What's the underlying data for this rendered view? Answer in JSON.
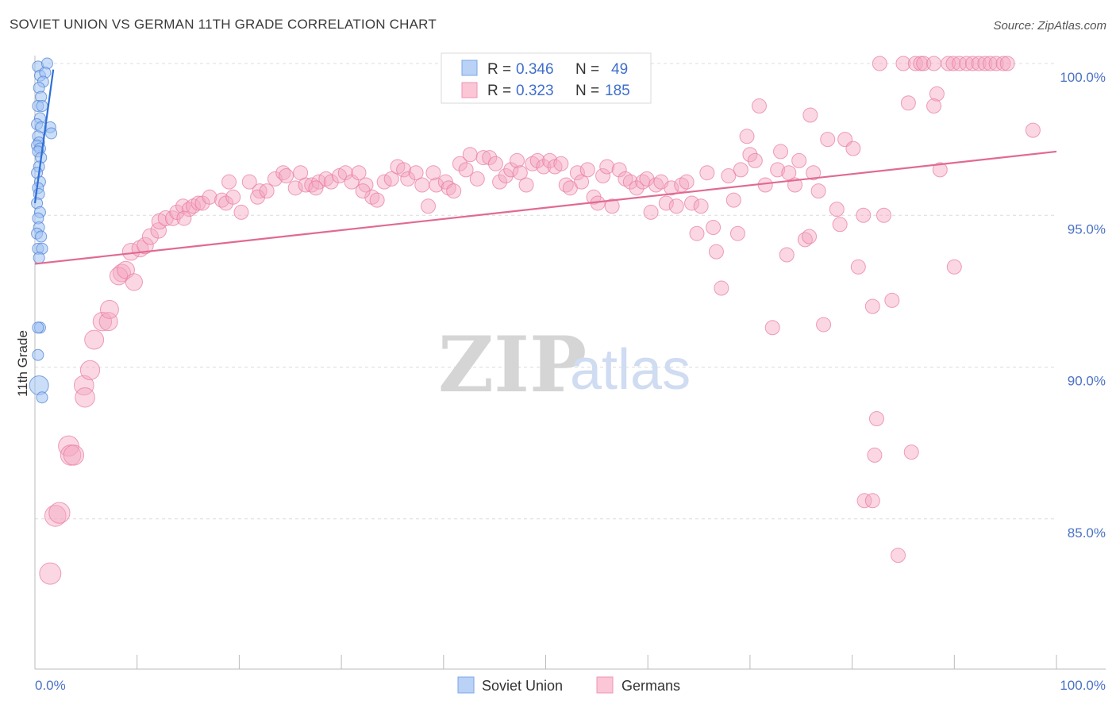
{
  "title": "SOVIET UNION VS GERMAN 11TH GRADE CORRELATION CHART",
  "source": "Source: ZipAtlas.com",
  "watermark": {
    "zip": "ZIP",
    "atlas": "atlas"
  },
  "legend": {
    "rows": [
      {
        "r_label": "R =",
        "r_value": "0.346",
        "n_label": "N =",
        "n_value": "49"
      },
      {
        "r_label": "R =",
        "r_value": "0.323",
        "n_label": "N =",
        "n_value": "185"
      }
    ]
  },
  "chart_data": {
    "type": "scatter",
    "title": "SOVIET UNION VS GERMAN 11TH GRADE CORRELATION CHART",
    "xlabel": "",
    "ylabel": "11th Grade",
    "xlim": [
      0,
      100
    ],
    "ylim": [
      80,
      100.5
    ],
    "x_tick_labels": [
      "0.0%",
      "100.0%"
    ],
    "y_ticks": [
      {
        "value": 100,
        "label": "100.0%"
      },
      {
        "value": 95,
        "label": "95.0%"
      },
      {
        "value": 90,
        "label": "90.0%"
      },
      {
        "value": 85,
        "label": "85.0%"
      }
    ],
    "series": [
      {
        "name": "Soviet Union",
        "color": "#6fa0e8",
        "line_color": "#2f6fd6",
        "r": 0.346,
        "n": 49,
        "trend": {
          "x": [
            0,
            1.8
          ],
          "y": [
            95.4,
            99.8
          ]
        },
        "points": [
          [
            0.3,
            99.9
          ],
          [
            1.2,
            100.0
          ],
          [
            0.5,
            99.6
          ],
          [
            1.0,
            99.7
          ],
          [
            0.8,
            99.4
          ],
          [
            0.4,
            99.2
          ],
          [
            0.6,
            98.9
          ],
          [
            0.3,
            98.6
          ],
          [
            0.7,
            98.6
          ],
          [
            0.5,
            98.2
          ],
          [
            0.2,
            98.0
          ],
          [
            0.6,
            97.9
          ],
          [
            1.5,
            97.9
          ],
          [
            1.6,
            97.7
          ],
          [
            0.3,
            97.6
          ],
          [
            0.4,
            97.4
          ],
          [
            0.2,
            97.3
          ],
          [
            0.5,
            97.2
          ],
          [
            0.3,
            97.1
          ],
          [
            0.6,
            96.9
          ],
          [
            0.4,
            96.6
          ],
          [
            0.2,
            96.4
          ],
          [
            0.5,
            96.1
          ],
          [
            0.3,
            95.9
          ],
          [
            0.4,
            95.7
          ],
          [
            0.2,
            95.4
          ],
          [
            0.5,
            95.1
          ],
          [
            0.3,
            94.9
          ],
          [
            0.4,
            94.6
          ],
          [
            0.2,
            94.4
          ],
          [
            0.6,
            94.3
          ],
          [
            0.3,
            93.9
          ],
          [
            0.7,
            93.9
          ],
          [
            0.4,
            93.6
          ],
          [
            0.5,
            91.3
          ],
          [
            0.3,
            91.3
          ],
          [
            0.3,
            90.4
          ],
          [
            0.4,
            89.4
          ],
          [
            0.7,
            89.0
          ]
        ]
      },
      {
        "name": "Germans",
        "color": "#f4a7c0",
        "line_color": "#e06a93",
        "r": 0.323,
        "n": 185,
        "trend": {
          "x": [
            0,
            100
          ],
          "y": [
            93.4,
            97.1
          ]
        },
        "points": [
          [
            1.5,
            83.2
          ],
          [
            2.0,
            85.1
          ],
          [
            2.4,
            85.2
          ],
          [
            3.3,
            87.4
          ],
          [
            3.5,
            87.1
          ],
          [
            3.8,
            87.1
          ],
          [
            4.8,
            89.4
          ],
          [
            4.9,
            89.0
          ],
          [
            5.4,
            89.9
          ],
          [
            5.8,
            90.9
          ],
          [
            6.6,
            91.5
          ],
          [
            7.2,
            91.5
          ],
          [
            7.3,
            91.9
          ],
          [
            8.5,
            93.1
          ],
          [
            8.2,
            93.0
          ],
          [
            8.9,
            93.2
          ],
          [
            9.7,
            92.8
          ],
          [
            9.4,
            93.8
          ],
          [
            10.3,
            93.9
          ],
          [
            10.8,
            94.0
          ],
          [
            11.3,
            94.3
          ],
          [
            12.1,
            94.5
          ],
          [
            12.2,
            94.8
          ],
          [
            12.8,
            94.9
          ],
          [
            13.5,
            94.9
          ],
          [
            13.9,
            95.1
          ],
          [
            14.5,
            95.3
          ],
          [
            15.1,
            95.2
          ],
          [
            14.6,
            94.9
          ],
          [
            15.5,
            95.3
          ],
          [
            16.0,
            95.4
          ],
          [
            16.4,
            95.4
          ],
          [
            17.1,
            95.6
          ],
          [
            18.3,
            95.5
          ],
          [
            18.7,
            95.4
          ],
          [
            19.4,
            95.6
          ],
          [
            20.2,
            95.1
          ],
          [
            21.0,
            96.1
          ],
          [
            19.0,
            96.1
          ],
          [
            22.0,
            95.8
          ],
          [
            21.8,
            95.6
          ],
          [
            22.7,
            95.8
          ],
          [
            23.5,
            96.2
          ],
          [
            24.3,
            96.4
          ],
          [
            24.6,
            96.3
          ],
          [
            25.5,
            95.9
          ],
          [
            26.0,
            96.4
          ],
          [
            26.5,
            96.0
          ],
          [
            27.1,
            96.0
          ],
          [
            27.8,
            96.1
          ],
          [
            28.5,
            96.2
          ],
          [
            29.0,
            96.1
          ],
          [
            27.5,
            95.9
          ],
          [
            29.8,
            96.3
          ],
          [
            30.4,
            96.4
          ],
          [
            31.0,
            96.1
          ],
          [
            31.7,
            96.4
          ],
          [
            32.4,
            96.0
          ],
          [
            33.0,
            95.6
          ],
          [
            32.1,
            95.8
          ],
          [
            33.5,
            95.5
          ],
          [
            34.2,
            96.1
          ],
          [
            34.9,
            96.2
          ],
          [
            35.5,
            96.6
          ],
          [
            36.1,
            96.5
          ],
          [
            36.5,
            96.2
          ],
          [
            37.3,
            96.4
          ],
          [
            37.9,
            96.0
          ],
          [
            38.5,
            95.3
          ],
          [
            39.3,
            96.0
          ],
          [
            39.0,
            96.4
          ],
          [
            40.2,
            96.1
          ],
          [
            40.5,
            95.9
          ],
          [
            41.0,
            95.8
          ],
          [
            41.6,
            96.7
          ],
          [
            42.2,
            96.5
          ],
          [
            42.6,
            97.0
          ],
          [
            43.3,
            96.2
          ],
          [
            43.9,
            96.9
          ],
          [
            44.5,
            96.9
          ],
          [
            45.1,
            96.7
          ],
          [
            45.5,
            96.1
          ],
          [
            46.1,
            96.3
          ],
          [
            46.6,
            96.5
          ],
          [
            47.2,
            96.8
          ],
          [
            47.5,
            96.4
          ],
          [
            48.1,
            96.0
          ],
          [
            48.7,
            96.7
          ],
          [
            49.2,
            96.8
          ],
          [
            49.8,
            96.6
          ],
          [
            50.4,
            96.8
          ],
          [
            50.9,
            96.6
          ],
          [
            51.5,
            96.7
          ],
          [
            52.0,
            96.0
          ],
          [
            52.4,
            95.9
          ],
          [
            53.1,
            96.4
          ],
          [
            53.5,
            96.1
          ],
          [
            54.1,
            96.5
          ],
          [
            54.7,
            95.6
          ],
          [
            55.1,
            95.4
          ],
          [
            55.6,
            96.3
          ],
          [
            56.0,
            96.6
          ],
          [
            56.5,
            95.3
          ],
          [
            57.2,
            96.5
          ],
          [
            57.8,
            96.2
          ],
          [
            58.3,
            96.1
          ],
          [
            58.9,
            95.9
          ],
          [
            59.5,
            96.1
          ],
          [
            59.9,
            96.2
          ],
          [
            60.3,
            95.1
          ],
          [
            60.8,
            96.0
          ],
          [
            61.3,
            96.1
          ],
          [
            61.8,
            95.4
          ],
          [
            62.3,
            95.9
          ],
          [
            62.8,
            95.3
          ],
          [
            63.3,
            96.0
          ],
          [
            63.8,
            96.1
          ],
          [
            64.3,
            95.4
          ],
          [
            64.8,
            94.4
          ],
          [
            65.2,
            95.3
          ],
          [
            65.8,
            96.4
          ],
          [
            66.4,
            94.6
          ],
          [
            66.7,
            93.8
          ],
          [
            67.2,
            92.6
          ],
          [
            67.9,
            96.3
          ],
          [
            68.4,
            95.5
          ],
          [
            68.8,
            94.4
          ],
          [
            69.1,
            96.5
          ],
          [
            69.7,
            97.6
          ],
          [
            70.0,
            97.0
          ],
          [
            70.5,
            96.8
          ],
          [
            70.9,
            98.6
          ],
          [
            71.5,
            96.0
          ],
          [
            72.2,
            91.3
          ],
          [
            72.7,
            96.5
          ],
          [
            73.0,
            97.1
          ],
          [
            73.6,
            93.7
          ],
          [
            73.8,
            96.4
          ],
          [
            74.4,
            96.0
          ],
          [
            74.8,
            96.8
          ],
          [
            75.4,
            94.2
          ],
          [
            75.8,
            94.3
          ],
          [
            75.9,
            98.3
          ],
          [
            76.2,
            96.4
          ],
          [
            76.7,
            95.8
          ],
          [
            77.2,
            91.4
          ],
          [
            77.6,
            97.5
          ],
          [
            78.5,
            95.2
          ],
          [
            78.8,
            94.7
          ],
          [
            79.3,
            97.5
          ],
          [
            80.1,
            97.2
          ],
          [
            80.6,
            93.3
          ],
          [
            81.1,
            95.0
          ],
          [
            82.0,
            92.0
          ],
          [
            82.4,
            88.3
          ],
          [
            82.2,
            87.1
          ],
          [
            81.2,
            85.6
          ],
          [
            82.0,
            85.6
          ],
          [
            83.1,
            95.0
          ],
          [
            83.9,
            92.2
          ],
          [
            84.5,
            83.8
          ],
          [
            85.0,
            100.0
          ],
          [
            85.5,
            98.7
          ],
          [
            85.8,
            87.2
          ],
          [
            86.2,
            100.0
          ],
          [
            86.7,
            100.0
          ],
          [
            87.0,
            100.0
          ],
          [
            88.0,
            100.0
          ],
          [
            88.3,
            99.0
          ],
          [
            88.6,
            96.5
          ],
          [
            89.4,
            100.0
          ],
          [
            89.9,
            100.0
          ],
          [
            90.5,
            100.0
          ],
          [
            91.2,
            100.0
          ],
          [
            91.8,
            100.0
          ],
          [
            92.4,
            100.0
          ],
          [
            93.0,
            100.0
          ],
          [
            93.5,
            100.0
          ],
          [
            94.1,
            100.0
          ],
          [
            94.8,
            100.0
          ],
          [
            95.2,
            100.0
          ],
          [
            90.0,
            93.3
          ],
          [
            97.7,
            97.8
          ],
          [
            82.7,
            100.0
          ],
          [
            88.0,
            98.6
          ]
        ]
      }
    ]
  },
  "bottom_legend": {
    "items": [
      "Soviet Union",
      "Germans"
    ]
  }
}
